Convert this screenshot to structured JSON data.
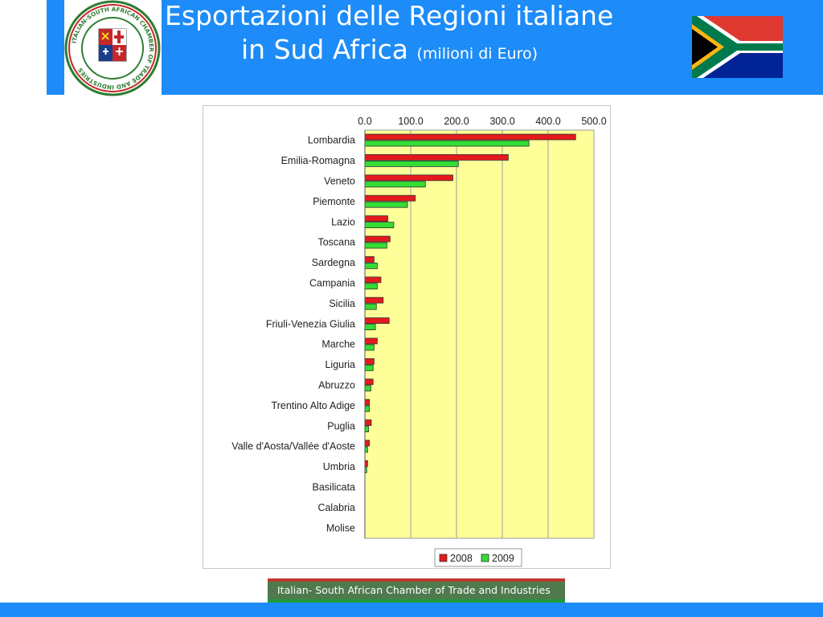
{
  "header": {
    "title_line1": "Esportazioni delle Regioni italiane",
    "title_line2": "in Sud Africa",
    "title_unit": "(milioni di Euro)",
    "logo_ring_text": "ITALIAN-SOUTH AFRICAN CHAMBER OF TRADE AND INDUSTRIES"
  },
  "footer": {
    "banner_text": "Italian- South African Chamber of Trade and Industries"
  },
  "colors": {
    "header_blue": "#1d8cf8",
    "plot_bg": "#ffff99",
    "series_2008": "#e41a1c",
    "series_2009": "#33dd33"
  },
  "chart_data": {
    "type": "bar",
    "orientation": "horizontal",
    "categories": [
      "Lombardia",
      "Emilia-Romagna",
      "Veneto",
      "Piemonte",
      "Lazio",
      "Toscana",
      "Sardegna",
      "Campania",
      "Sicilia",
      "Friuli-Venezia Giulia",
      "Marche",
      "Liguria",
      "Abruzzo",
      "Trentino Alto Adige",
      "Puglia",
      "Valle d'Aosta/Vallée d'Aoste",
      "Umbria",
      "Basilicata",
      "Calabria",
      "Molise"
    ],
    "series": [
      {
        "name": "2008",
        "values": [
          460,
          313,
          192,
          110,
          50,
          55,
          20,
          35,
          40,
          53,
          27,
          20,
          18,
          10,
          14,
          10,
          6,
          0,
          0,
          0
        ]
      },
      {
        "name": "2009",
        "values": [
          358,
          204,
          132,
          93,
          63,
          48,
          27,
          27,
          25,
          23,
          20,
          18,
          13,
          10,
          8,
          6,
          4,
          0,
          0,
          0
        ]
      }
    ],
    "xlim": [
      0,
      500
    ],
    "ticks": [
      "0.0",
      "100.0",
      "200.0",
      "300.0",
      "400.0",
      "500.0"
    ],
    "tick_values": [
      0,
      100,
      200,
      300,
      400,
      500
    ],
    "grid": true,
    "legend_position": "bottom-right"
  }
}
